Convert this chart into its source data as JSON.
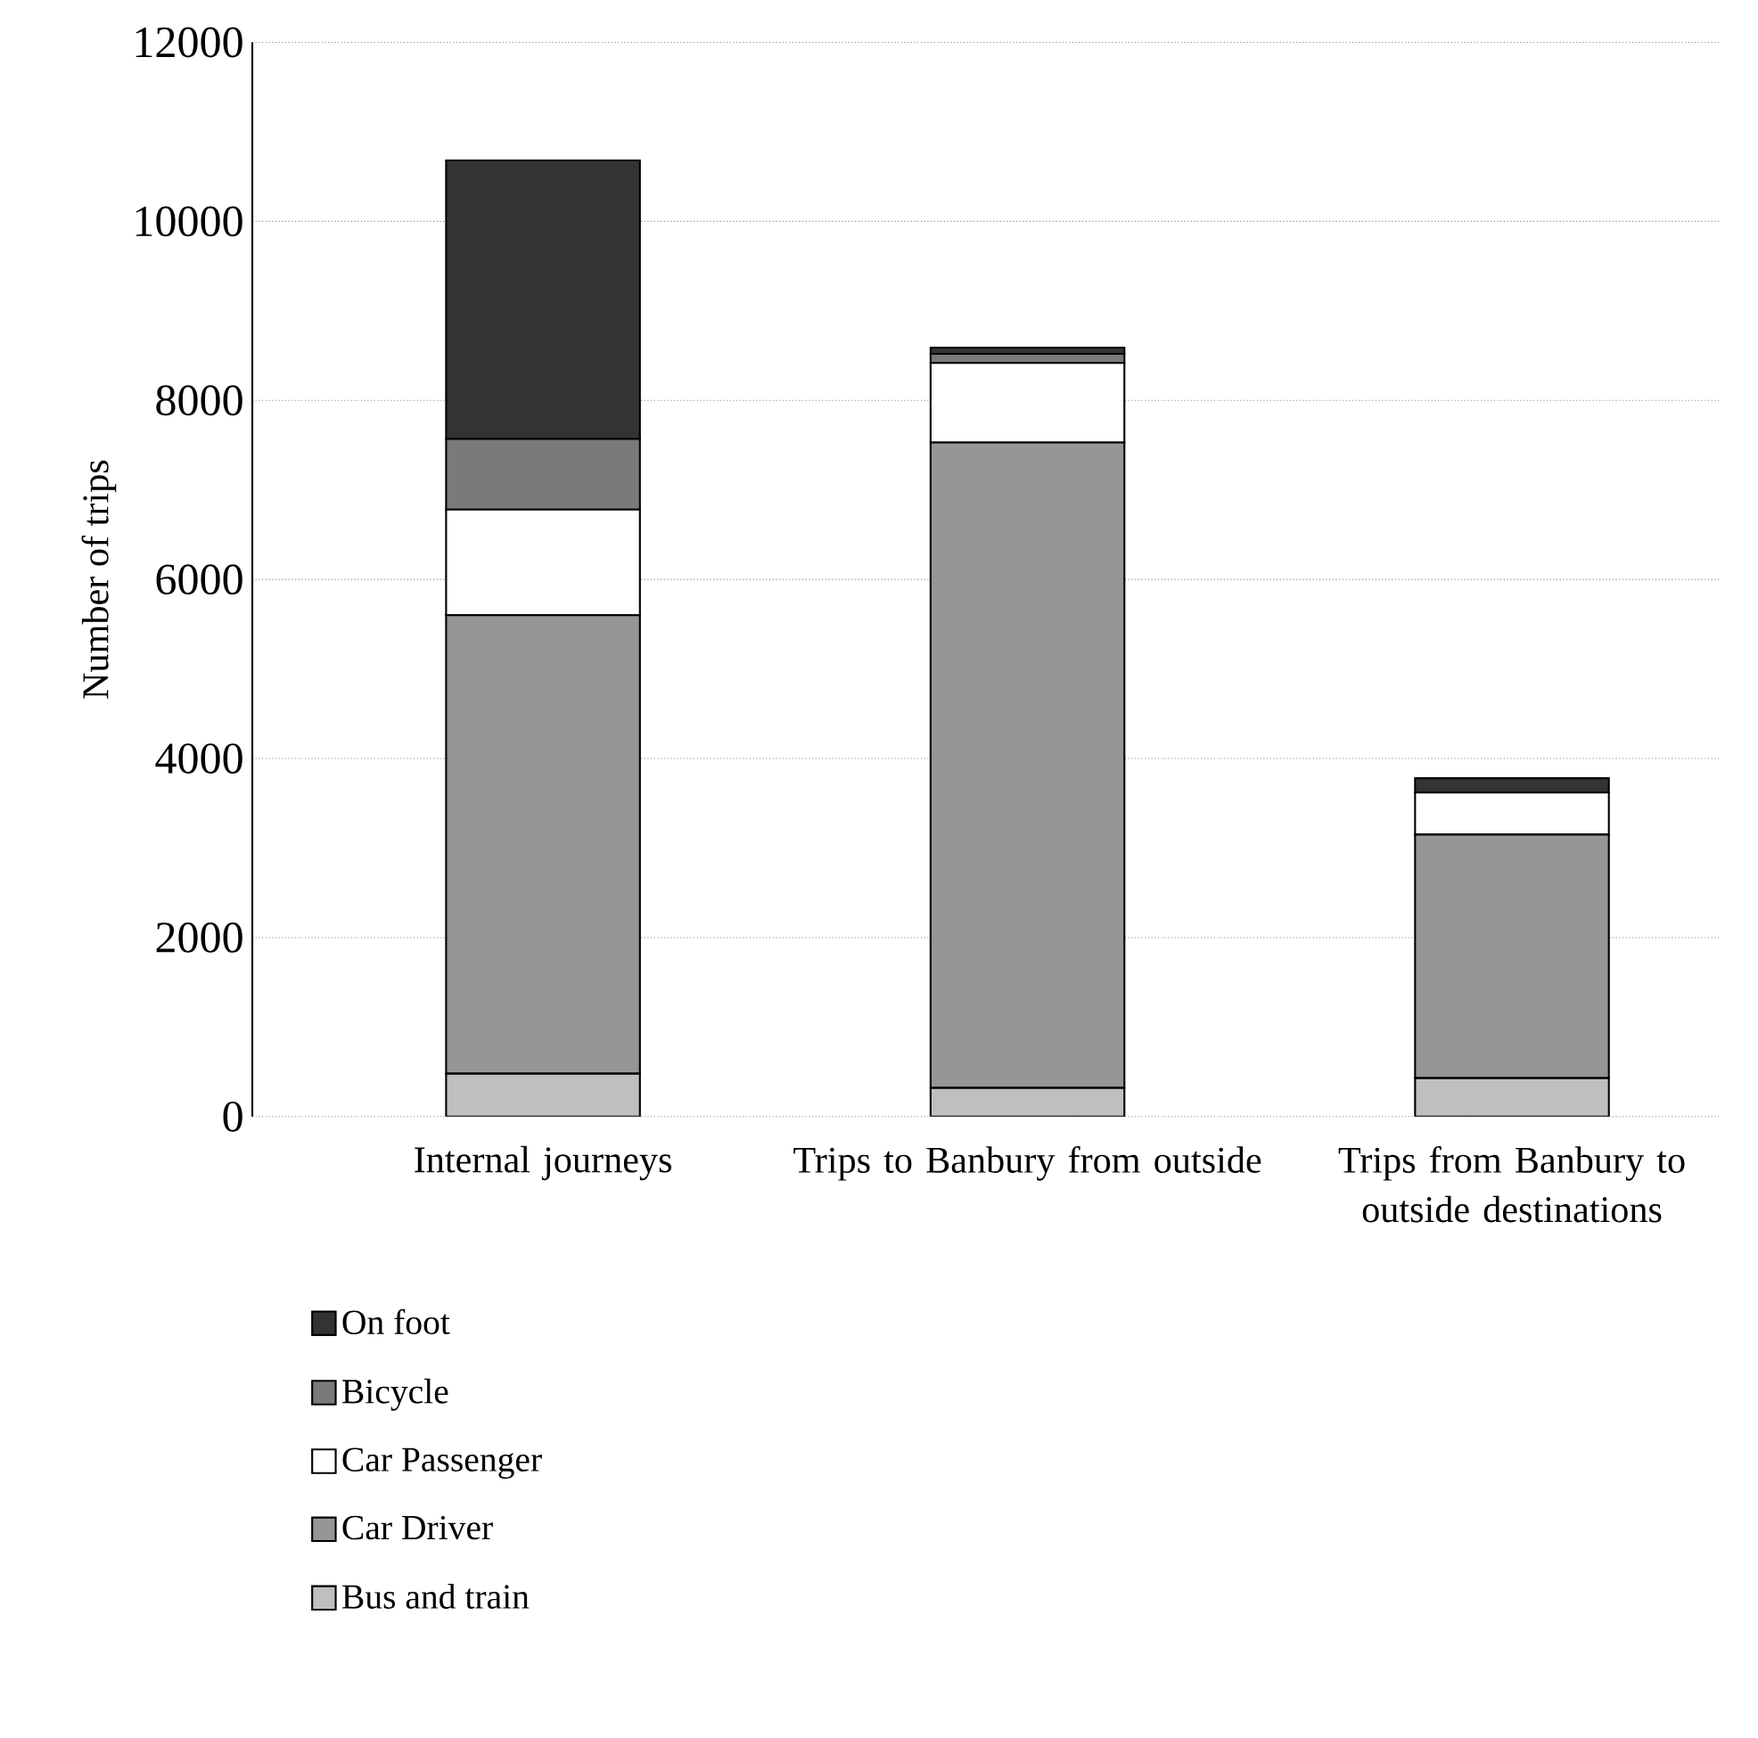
{
  "chart_data": {
    "type": "bar",
    "stacked": true,
    "ylabel": "Number of trips",
    "categories": [
      "Internal journeys",
      "Trips to Banbury from outside",
      "Trips from Banbury to outside destinations"
    ],
    "series": [
      {
        "name": "Bus and train",
        "color": "#bfbfbf",
        "values": [
          480,
          320,
          430
        ]
      },
      {
        "name": "Car Driver",
        "color": "#969696",
        "values": [
          5120,
          7210,
          2720
        ]
      },
      {
        "name": "Car Passenger",
        "color": "#ffffff",
        "values": [
          1180,
          890,
          470
        ]
      },
      {
        "name": "Bicycle",
        "color": "#7a7a7a",
        "values": [
          790,
          100,
          0
        ]
      },
      {
        "name": "On foot",
        "color": "#333333",
        "values": [
          3110,
          70,
          160
        ]
      }
    ],
    "ylim": [
      0,
      12000
    ],
    "yticks": [
      0,
      2000,
      4000,
      6000,
      8000,
      10000,
      12000
    ],
    "grid": "y",
    "legend": "bottom left"
  }
}
